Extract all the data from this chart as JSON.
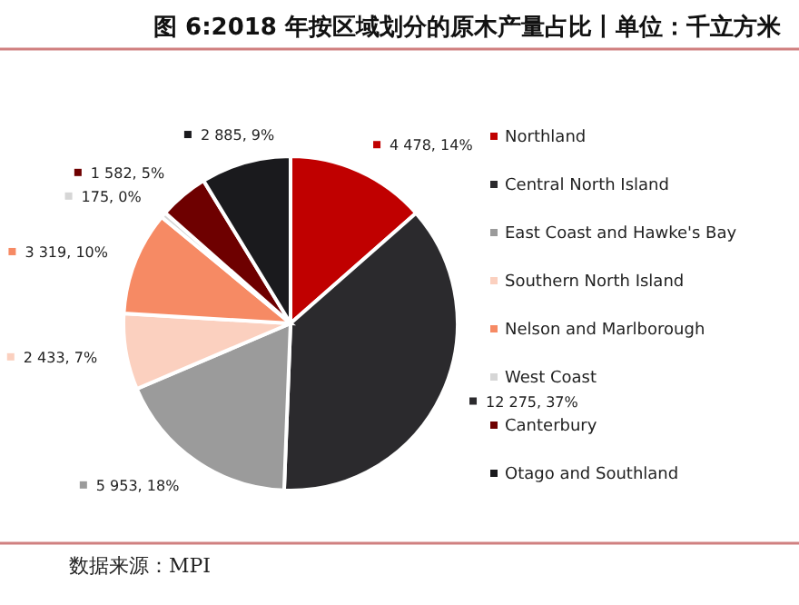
{
  "chart_data": {
    "type": "pie",
    "title": "图 6:2018 年按区域划分的原木产量占比丨单位：千立方米",
    "categories": [
      "Northland",
      "Central North Island",
      "East Coast and Hawke's Bay",
      "Southern North Island",
      "Nelson and Marlborough",
      "West Coast",
      "Canterbury",
      "Otago and Southland"
    ],
    "values": [
      4478,
      12275,
      5953,
      2433,
      3319,
      175,
      1582,
      2885
    ],
    "value_labels": [
      "4 478, 14%",
      "12 275, 37%",
      "5 953, 18%",
      "2 433, 7%",
      "3 319, 10%",
      "175, 0%",
      "1 582, 5%",
      "2 885, 9%"
    ],
    "colors": [
      "#c00000",
      "#2b2a2d",
      "#9b9b9b",
      "#fbd0bf",
      "#f68a64",
      "#d6d6d6",
      "#6e0000",
      "#1a1a1d"
    ],
    "legend": "right",
    "annotations": [
      "数据来源：MPI"
    ]
  }
}
